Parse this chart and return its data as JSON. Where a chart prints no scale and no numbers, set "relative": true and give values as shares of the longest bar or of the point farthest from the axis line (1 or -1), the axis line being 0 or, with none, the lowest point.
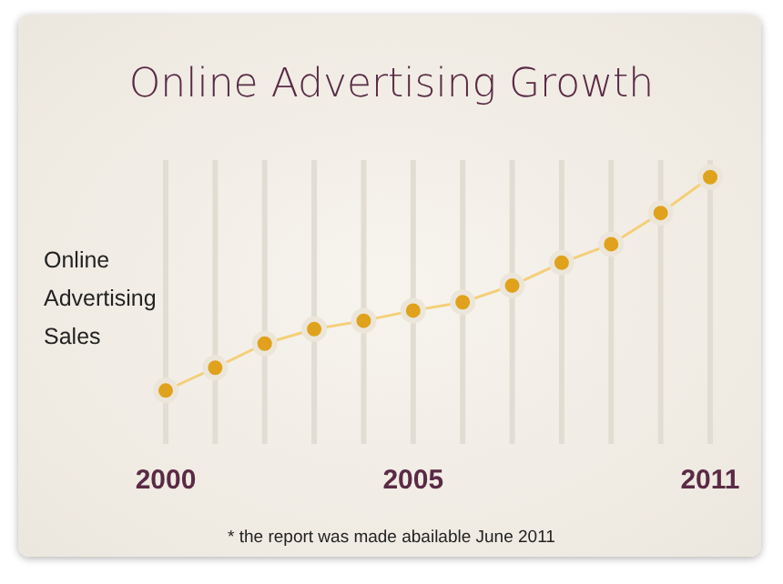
{
  "chart_data": {
    "type": "line",
    "title": "Online Advertising Growth",
    "ylabel": "Online Advertising Sales",
    "relative": true,
    "grid": "x",
    "marker": "circle",
    "line_style": "solid",
    "categories": [
      "2000",
      null,
      null,
      null,
      null,
      "2005",
      null,
      null,
      null,
      null,
      null,
      "2011"
    ],
    "series": [
      {
        "color": "#e0a21c",
        "values": [
          0,
          0.107,
          0.22,
          0.288,
          0.327,
          0.375,
          0.414,
          0.492,
          0.599,
          0.686,
          0.832,
          1
        ]
      }
    ],
    "annotations": [
      "* the report was made abailable June 2011"
    ]
  }
}
